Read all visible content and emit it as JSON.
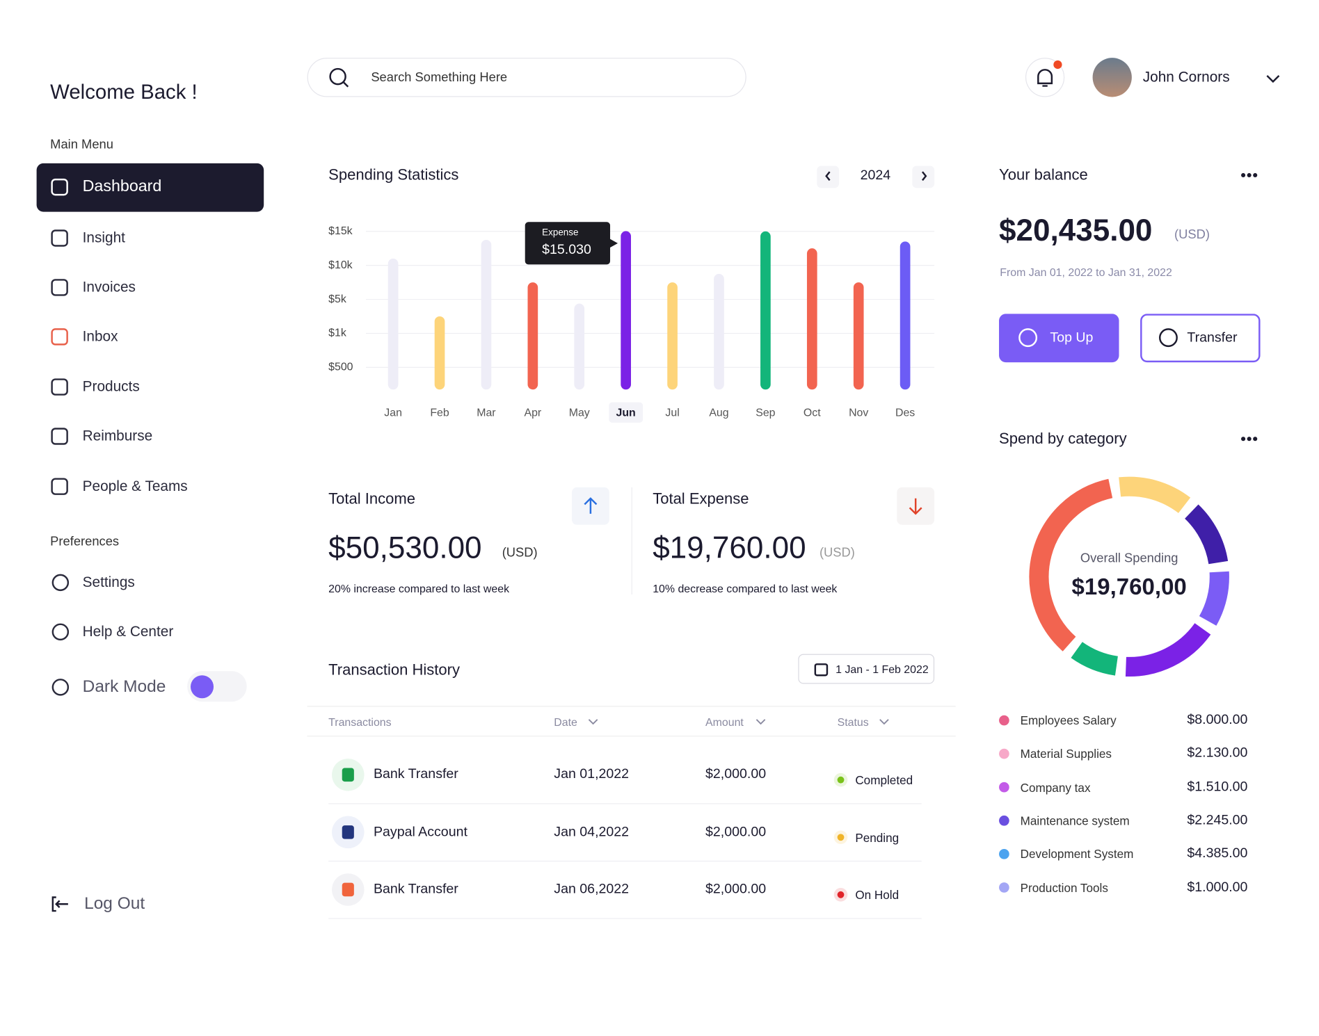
{
  "sidebar": {
    "greeting": "Welcome Back !",
    "main_menu_title": "Main Menu",
    "main_menu": [
      "Dashboard",
      "Insight",
      "Invoices",
      "Inbox",
      "Products",
      "Reimburse",
      "People & Teams"
    ],
    "preferences_title": "Preferences",
    "preferences": [
      "Settings",
      "Help & Center",
      "Dark Mode"
    ],
    "logout": "Log Out"
  },
  "header": {
    "search_placeholder": "Search Something Here",
    "user_name": "John Cornors"
  },
  "chart_data": [
    {
      "type": "bar",
      "title": "Spending Statistics",
      "year": "2024",
      "categories": [
        "Jan",
        "Feb",
        "Mar",
        "Apr",
        "May",
        "Jun",
        "Jul",
        "Aug",
        "Sep",
        "Oct",
        "Nov",
        "Des"
      ],
      "values": [
        11000,
        3000,
        13750,
        7500,
        4500,
        15030,
        7500,
        8750,
        15000,
        12500,
        7500,
        13500
      ],
      "colors": [
        "#eeedf7",
        "#fdd47a",
        "#eeedf7",
        "#f26450",
        "#eeedf7",
        "#7b22e6",
        "#fdd47a",
        "#eeedf7",
        "#13b57a",
        "#f26450",
        "#f26450",
        "#6c5cf5"
      ],
      "ylim": [
        0,
        15000
      ],
      "yticks": [
        {
          "value": 500,
          "label": "$500"
        },
        {
          "value": 1000,
          "label": "$1k"
        },
        {
          "value": 5000,
          "label": "$5k"
        },
        {
          "value": 10000,
          "label": "$10k"
        },
        {
          "value": 15000,
          "label": "$15k"
        }
      ],
      "grid": true,
      "highlight": "Jun",
      "tooltip": {
        "label": "Expense",
        "value": "$15.030"
      }
    },
    {
      "type": "donut",
      "title": "Spend by category",
      "center_label": "Overall Spending",
      "center_value": "$19,760,00",
      "values": [
        13.5,
        11.5,
        10,
        17.5,
        8.5,
        39
      ],
      "colors": [
        "#fdd47a",
        "#3f1fa8",
        "#7b5cf5",
        "#7b22e6",
        "#13b57a",
        "#f26450"
      ]
    }
  ],
  "income": {
    "title": "Total Income",
    "amount": "$50,530.00",
    "currency": "(USD)",
    "note": "20% increase compared to last week"
  },
  "expense": {
    "title": "Total Expense",
    "amount": "$19,760.00",
    "currency": "(USD)",
    "note": "10% decrease compared to last week"
  },
  "transactions": {
    "title": "Transaction History",
    "date_range": "1 Jan - 1 Feb 2022",
    "columns": [
      "Transactions",
      "Date",
      "Amount",
      "Status"
    ],
    "rows": [
      [
        "Bank Transfer",
        "Jan 01,2022",
        "$2,000.00",
        "Completed"
      ],
      [
        "Paypal Account",
        "Jan 04,2022",
        "$2,000.00",
        "Pending"
      ],
      [
        "Bank Transfer",
        "Jan 06,2022",
        "$2,000.00",
        "On Hold"
      ]
    ]
  },
  "balance": {
    "title": "Your balance",
    "amount": "$20,435.00",
    "currency": "(USD)",
    "period": "From Jan 01, 2022 to Jan 31, 2022",
    "buttons": [
      "Top Up",
      "Transfer"
    ]
  },
  "category_list": [
    {
      "name": "Employees Salary",
      "amount": "$8.000.00",
      "color": "#e8608a"
    },
    {
      "name": "Material Supplies",
      "amount": "$2.130.00",
      "color": "#f7a8c8"
    },
    {
      "name": "Company tax",
      "amount": "$1.510.00",
      "color": "#c35be8"
    },
    {
      "name": "Maintenance system",
      "amount": "$2.245.00",
      "color": "#6a4fe0"
    },
    {
      "name": "Development System",
      "amount": "$4.385.00",
      "color": "#4ca3ef"
    },
    {
      "name": "Production Tools",
      "amount": "$1.000.00",
      "color": "#a3a6f5"
    }
  ]
}
